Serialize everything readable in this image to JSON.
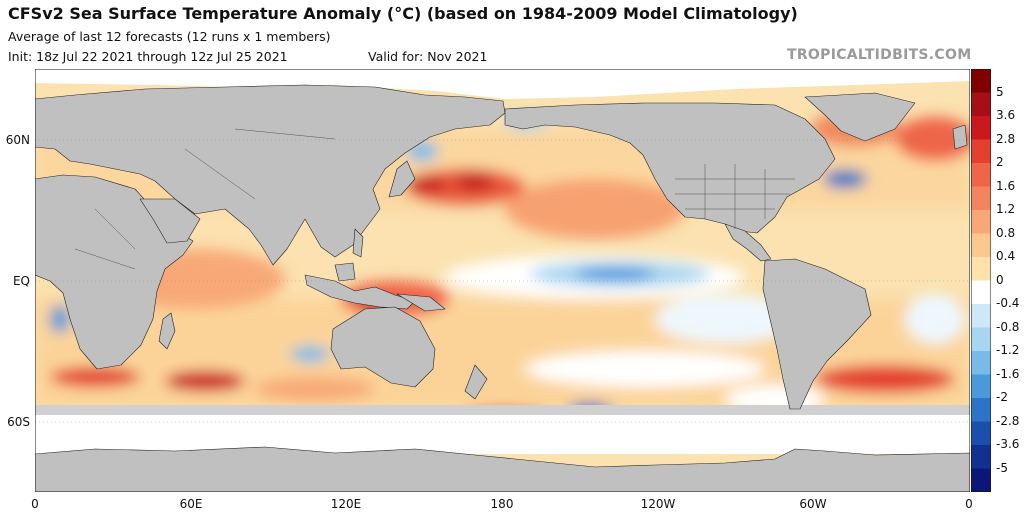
{
  "header": {
    "title": "CFSv2 Sea Surface Temperature Anomaly (°C) (based on 1984-2009 Model Climatology)",
    "subtitle": "Average of last 12 forecasts (12 runs x 1 members)",
    "init": "Init: 18z Jul 22 2021 through 12z Jul 25 2021",
    "valid": "Valid for: Nov 2021",
    "brand": "TROPICALTIDBITS.COM"
  },
  "axes": {
    "lat_labels": [
      "60N",
      "EQ",
      "60S"
    ],
    "lon_labels": [
      "0",
      "60E",
      "120E",
      "180",
      "120W",
      "60W",
      "0"
    ]
  },
  "colorbar": {
    "labels": [
      "5",
      "3.6",
      "2.8",
      "2",
      "1.6",
      "1.2",
      "0.8",
      "0.4",
      "0",
      "-0.4",
      "-0.8",
      "-1.2",
      "-1.6",
      "-2",
      "-2.8",
      "-3.6",
      "-5"
    ],
    "colors": [
      "#7f0000",
      "#a50f15",
      "#cb181d",
      "#e3402f",
      "#ef6548",
      "#f4845d",
      "#f8a877",
      "#fbc98e",
      "#fde3aa",
      "#ffffff",
      "#cfe8f7",
      "#a8d5f0",
      "#79bbe8",
      "#4b98da",
      "#2c74c8",
      "#1b4fae",
      "#12308f",
      "#0a1778"
    ]
  },
  "legend_colors": {
    "land": "#c0c0c0",
    "sea_ice": "#ffffff",
    "missing": "#d0d0d0"
  }
}
